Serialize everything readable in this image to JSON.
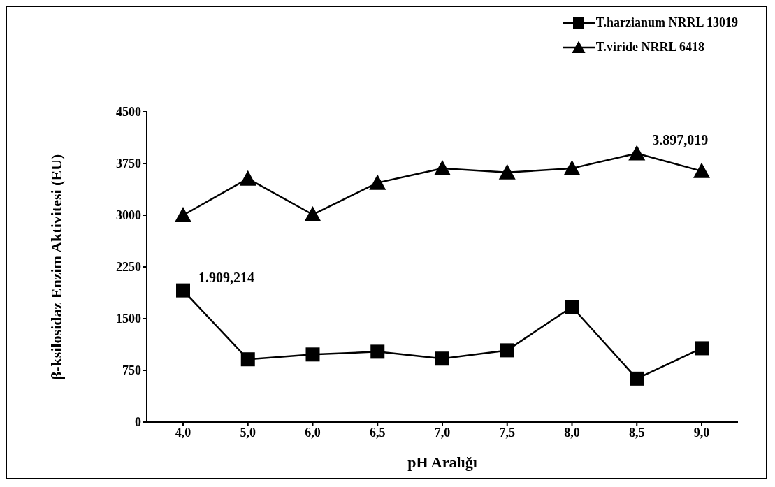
{
  "chart_data": {
    "type": "line",
    "xlabel": "pH Aralığı",
    "ylabel": "β-ksilosidaz Enzim Aktivitesi (EU)",
    "categories": [
      "4,0",
      "5,0",
      "6,0",
      "6,5",
      "7,0",
      "7,5",
      "8,0",
      "8,5",
      "9,0"
    ],
    "series": [
      {
        "name": "T.harzianum NRRL 13019",
        "color": "#000000",
        "marker": "square",
        "values": [
          1909.214,
          910,
          980,
          1020,
          920,
          1040,
          1670,
          630,
          1070
        ],
        "value_labels": [
          "1.909,214",
          null,
          null,
          null,
          null,
          null,
          null,
          null,
          null
        ]
      },
      {
        "name": "T.viride NRRL 6418",
        "color": "#000000",
        "marker": "triangle",
        "values": [
          3000,
          3530,
          3010,
          3470,
          3680,
          3620,
          3680,
          3897.019,
          3640
        ],
        "value_labels": [
          null,
          null,
          null,
          null,
          null,
          null,
          null,
          "3.897,019",
          null
        ]
      }
    ],
    "ylim": [
      0,
      4500
    ],
    "yticks": [
      0,
      750,
      1500,
      2250,
      3000,
      3750,
      4500
    ],
    "grid": false,
    "legend": "top right",
    "line_style": "solid"
  }
}
